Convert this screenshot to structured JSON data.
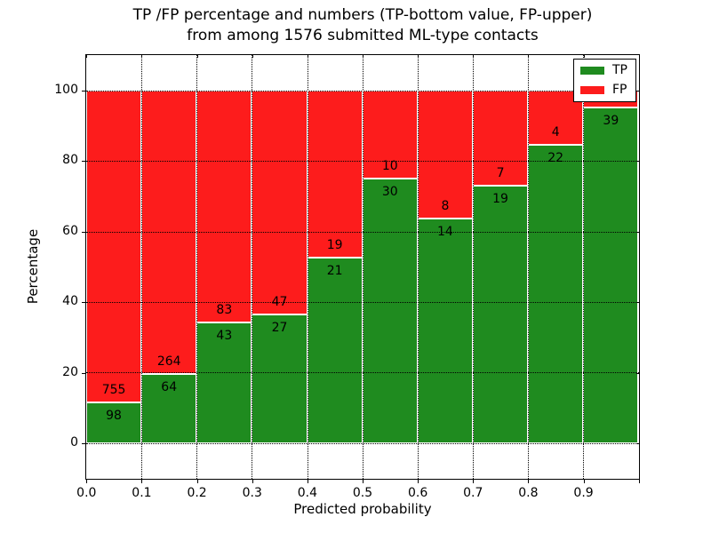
{
  "chart_data": {
    "type": "bar",
    "stacked": true,
    "title_line1": "TP /FP percentage and numbers (TP-bottom value, FP-upper)",
    "title_line2": "from among 1576 submitted ML-type contacts",
    "xlabel": "Predicted probability",
    "ylabel": "Percentage",
    "total_contacts": 1576,
    "xlim": [
      0.0,
      1.0
    ],
    "ylim": [
      -10,
      110
    ],
    "x_tick_labels": [
      "0.0",
      "0.1",
      "0.2",
      "0.3",
      "0.4",
      "0.5",
      "0.6",
      "0.7",
      "0.8",
      "0.9"
    ],
    "y_tick_values": [
      0,
      20,
      40,
      60,
      80,
      100
    ],
    "grid": {
      "style": "dotted",
      "color": "#000000",
      "horizontal": true,
      "vertical": true
    },
    "colors": {
      "tp": "#1f8b1f",
      "fp": "#fd1c1c",
      "bar_edge": "#ffffff"
    },
    "bin_width": 0.1,
    "bins": [
      {
        "x0": 0.0,
        "tp_count": 98,
        "fp_count": 755,
        "tp_pct": 11.49
      },
      {
        "x0": 0.1,
        "tp_count": 64,
        "fp_count": 264,
        "tp_pct": 19.51
      },
      {
        "x0": 0.2,
        "tp_count": 43,
        "fp_count": 83,
        "tp_pct": 34.13
      },
      {
        "x0": 0.3,
        "tp_count": 27,
        "fp_count": 47,
        "tp_pct": 36.49
      },
      {
        "x0": 0.4,
        "tp_count": 21,
        "fp_count": 19,
        "tp_pct": 52.5
      },
      {
        "x0": 0.5,
        "tp_count": 30,
        "fp_count": 10,
        "tp_pct": 75.0
      },
      {
        "x0": 0.6,
        "tp_count": 14,
        "fp_count": 8,
        "tp_pct": 63.64
      },
      {
        "x0": 0.7,
        "tp_count": 19,
        "fp_count": 7,
        "tp_pct": 73.08
      },
      {
        "x0": 0.8,
        "tp_count": 22,
        "fp_count": 4,
        "tp_pct": 84.62
      },
      {
        "x0": 0.9,
        "tp_count": 39,
        "fp_count": null,
        "tp_pct": 95.12
      }
    ],
    "legend": {
      "position": "upper right",
      "entries": [
        {
          "label": "TP",
          "color": "#1f8b1f"
        },
        {
          "label": "FP",
          "color": "#fd1c1c"
        }
      ]
    }
  }
}
